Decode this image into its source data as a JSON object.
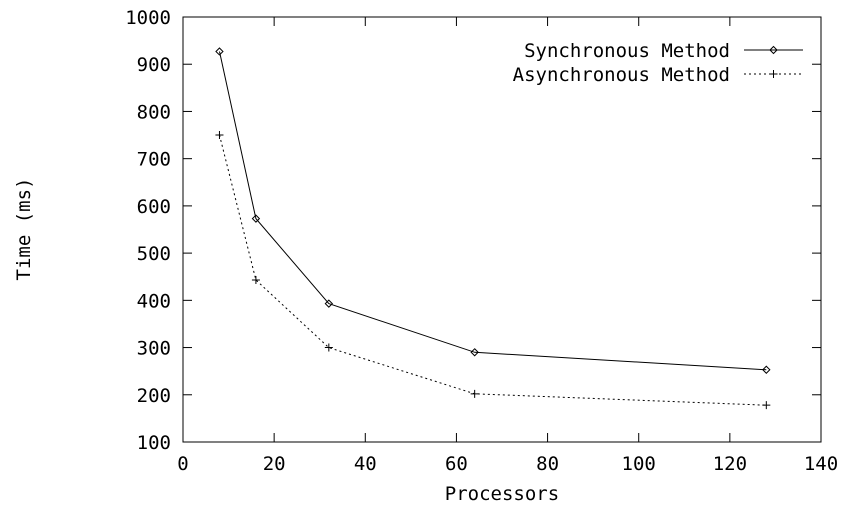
{
  "chart_data": {
    "type": "line",
    "title": "",
    "xlabel": "Processors",
    "ylabel": "Time (ms)",
    "xlim": [
      0,
      140
    ],
    "ylim": [
      100,
      1000
    ],
    "xticks": [
      "0",
      "20",
      "40",
      "60",
      "80",
      "100",
      "120",
      "140"
    ],
    "yticks": [
      "100",
      "200",
      "300",
      "400",
      "500",
      "600",
      "700",
      "800",
      "900",
      "1000"
    ],
    "grid": false,
    "legend_position": "top-right",
    "series": [
      {
        "name": "Synchronous Method",
        "marker": "diamond",
        "line_style": "solid",
        "x": [
          8,
          16,
          32,
          64,
          128
        ],
        "y": [
          927,
          573,
          393,
          290,
          253
        ]
      },
      {
        "name": "Asynchronous Method",
        "marker": "plus",
        "line_style": "dotted",
        "x": [
          8,
          16,
          32,
          64,
          128
        ],
        "y": [
          750,
          443,
          300,
          202,
          178
        ]
      }
    ]
  }
}
